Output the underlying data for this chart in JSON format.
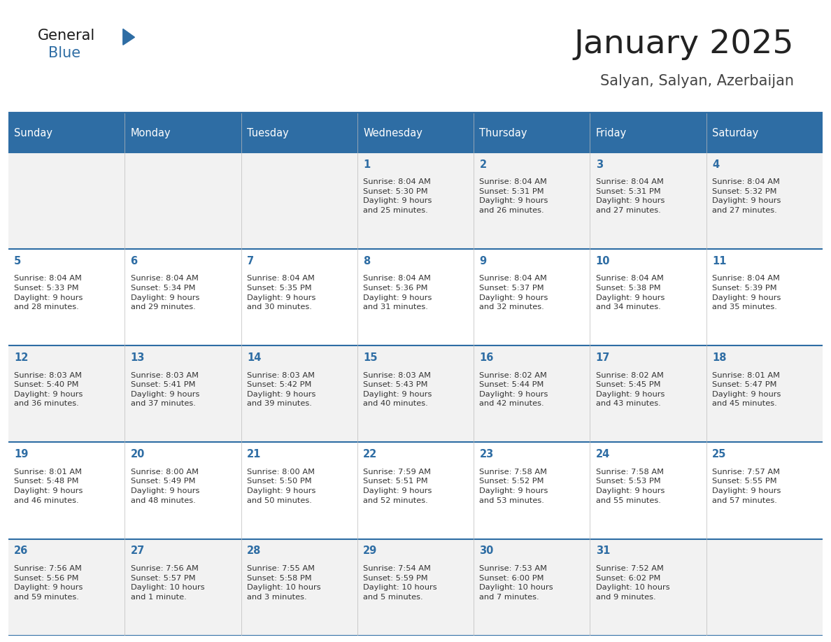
{
  "title": "January 2025",
  "subtitle": "Salyan, Salyan, Azerbaijan",
  "header_bg": "#2E6DA4",
  "header_text": "#FFFFFF",
  "cell_bg_light": "#F2F2F2",
  "cell_bg_white": "#FFFFFF",
  "day_headers": [
    "Sunday",
    "Monday",
    "Tuesday",
    "Wednesday",
    "Thursday",
    "Friday",
    "Saturday"
  ],
  "title_color": "#222222",
  "subtitle_color": "#444444",
  "day_num_color": "#2E6DA4",
  "cell_text_color": "#333333",
  "calendar_data": [
    [
      {
        "day": null,
        "info": null
      },
      {
        "day": null,
        "info": null
      },
      {
        "day": null,
        "info": null
      },
      {
        "day": 1,
        "info": "Sunrise: 8:04 AM\nSunset: 5:30 PM\nDaylight: 9 hours\nand 25 minutes."
      },
      {
        "day": 2,
        "info": "Sunrise: 8:04 AM\nSunset: 5:31 PM\nDaylight: 9 hours\nand 26 minutes."
      },
      {
        "day": 3,
        "info": "Sunrise: 8:04 AM\nSunset: 5:31 PM\nDaylight: 9 hours\nand 27 minutes."
      },
      {
        "day": 4,
        "info": "Sunrise: 8:04 AM\nSunset: 5:32 PM\nDaylight: 9 hours\nand 27 minutes."
      }
    ],
    [
      {
        "day": 5,
        "info": "Sunrise: 8:04 AM\nSunset: 5:33 PM\nDaylight: 9 hours\nand 28 minutes."
      },
      {
        "day": 6,
        "info": "Sunrise: 8:04 AM\nSunset: 5:34 PM\nDaylight: 9 hours\nand 29 minutes."
      },
      {
        "day": 7,
        "info": "Sunrise: 8:04 AM\nSunset: 5:35 PM\nDaylight: 9 hours\nand 30 minutes."
      },
      {
        "day": 8,
        "info": "Sunrise: 8:04 AM\nSunset: 5:36 PM\nDaylight: 9 hours\nand 31 minutes."
      },
      {
        "day": 9,
        "info": "Sunrise: 8:04 AM\nSunset: 5:37 PM\nDaylight: 9 hours\nand 32 minutes."
      },
      {
        "day": 10,
        "info": "Sunrise: 8:04 AM\nSunset: 5:38 PM\nDaylight: 9 hours\nand 34 minutes."
      },
      {
        "day": 11,
        "info": "Sunrise: 8:04 AM\nSunset: 5:39 PM\nDaylight: 9 hours\nand 35 minutes."
      }
    ],
    [
      {
        "day": 12,
        "info": "Sunrise: 8:03 AM\nSunset: 5:40 PM\nDaylight: 9 hours\nand 36 minutes."
      },
      {
        "day": 13,
        "info": "Sunrise: 8:03 AM\nSunset: 5:41 PM\nDaylight: 9 hours\nand 37 minutes."
      },
      {
        "day": 14,
        "info": "Sunrise: 8:03 AM\nSunset: 5:42 PM\nDaylight: 9 hours\nand 39 minutes."
      },
      {
        "day": 15,
        "info": "Sunrise: 8:03 AM\nSunset: 5:43 PM\nDaylight: 9 hours\nand 40 minutes."
      },
      {
        "day": 16,
        "info": "Sunrise: 8:02 AM\nSunset: 5:44 PM\nDaylight: 9 hours\nand 42 minutes."
      },
      {
        "day": 17,
        "info": "Sunrise: 8:02 AM\nSunset: 5:45 PM\nDaylight: 9 hours\nand 43 minutes."
      },
      {
        "day": 18,
        "info": "Sunrise: 8:01 AM\nSunset: 5:47 PM\nDaylight: 9 hours\nand 45 minutes."
      }
    ],
    [
      {
        "day": 19,
        "info": "Sunrise: 8:01 AM\nSunset: 5:48 PM\nDaylight: 9 hours\nand 46 minutes."
      },
      {
        "day": 20,
        "info": "Sunrise: 8:00 AM\nSunset: 5:49 PM\nDaylight: 9 hours\nand 48 minutes."
      },
      {
        "day": 21,
        "info": "Sunrise: 8:00 AM\nSunset: 5:50 PM\nDaylight: 9 hours\nand 50 minutes."
      },
      {
        "day": 22,
        "info": "Sunrise: 7:59 AM\nSunset: 5:51 PM\nDaylight: 9 hours\nand 52 minutes."
      },
      {
        "day": 23,
        "info": "Sunrise: 7:58 AM\nSunset: 5:52 PM\nDaylight: 9 hours\nand 53 minutes."
      },
      {
        "day": 24,
        "info": "Sunrise: 7:58 AM\nSunset: 5:53 PM\nDaylight: 9 hours\nand 55 minutes."
      },
      {
        "day": 25,
        "info": "Sunrise: 7:57 AM\nSunset: 5:55 PM\nDaylight: 9 hours\nand 57 minutes."
      }
    ],
    [
      {
        "day": 26,
        "info": "Sunrise: 7:56 AM\nSunset: 5:56 PM\nDaylight: 9 hours\nand 59 minutes."
      },
      {
        "day": 27,
        "info": "Sunrise: 7:56 AM\nSunset: 5:57 PM\nDaylight: 10 hours\nand 1 minute."
      },
      {
        "day": 28,
        "info": "Sunrise: 7:55 AM\nSunset: 5:58 PM\nDaylight: 10 hours\nand 3 minutes."
      },
      {
        "day": 29,
        "info": "Sunrise: 7:54 AM\nSunset: 5:59 PM\nDaylight: 10 hours\nand 5 minutes."
      },
      {
        "day": 30,
        "info": "Sunrise: 7:53 AM\nSunset: 6:00 PM\nDaylight: 10 hours\nand 7 minutes."
      },
      {
        "day": 31,
        "info": "Sunrise: 7:52 AM\nSunset: 6:02 PM\nDaylight: 10 hours\nand 9 minutes."
      },
      {
        "day": null,
        "info": null
      }
    ]
  ]
}
